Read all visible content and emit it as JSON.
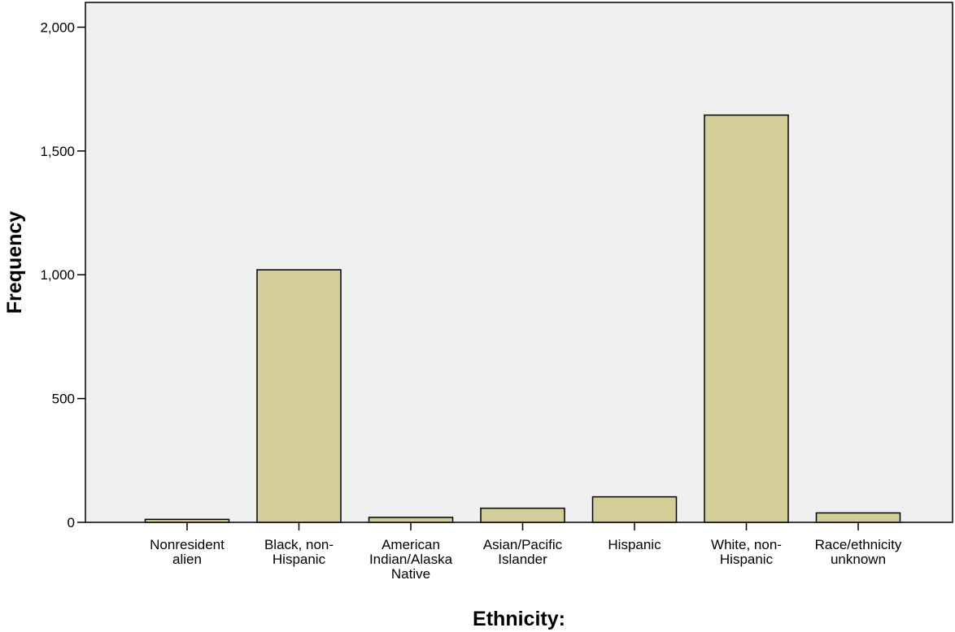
{
  "chart_data": {
    "type": "bar",
    "title": "",
    "xlabel": "Ethnicity:",
    "ylabel": "Frequency",
    "categories": [
      [
        "Nonresident",
        "alien"
      ],
      [
        "Black, non-",
        "Hispanic"
      ],
      [
        "American",
        "Indian/Alaska",
        "Native"
      ],
      [
        "Asian/Pacific",
        "Islander"
      ],
      [
        "Hispanic"
      ],
      [
        "White, non-",
        "Hispanic"
      ],
      [
        "Race/ethnicity",
        "unknown"
      ]
    ],
    "values": [
      12,
      1020,
      20,
      57,
      103,
      1645,
      38
    ],
    "ylim": [
      0,
      2100
    ],
    "yticks": [
      0,
      500,
      1000,
      1500,
      2000
    ],
    "ytick_labels": [
      "0",
      "500",
      "1,000",
      "1,500",
      "2,000"
    ],
    "grid": false,
    "colors": {
      "plot_background": "#f0f0f0",
      "bar_fill": "#d3ce97",
      "bar_stroke": "#000000"
    }
  }
}
